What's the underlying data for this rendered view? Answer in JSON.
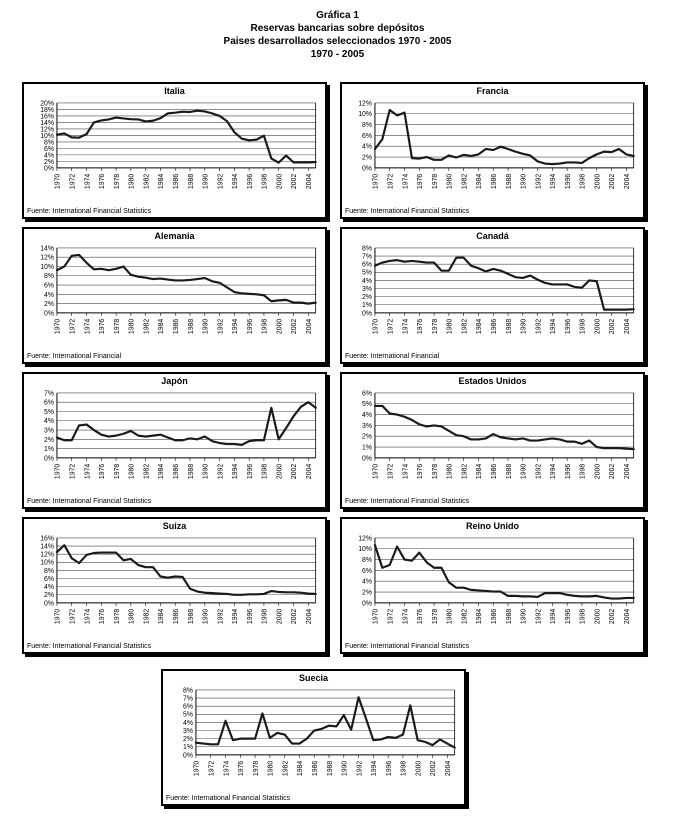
{
  "page_title": {
    "line1": "Gráfica 1",
    "line2": "Reservas bancarias sobre depósitos",
    "line3": "Paises desarrollados seleccionados 1970 - 2005",
    "line4": "1970 - 2005"
  },
  "colors": {
    "line": "#1a1a1a",
    "grid": "#4a4a4a",
    "axis": "#000000",
    "border": "#000000",
    "background": "#ffffff"
  },
  "x_labels": [
    "1970",
    "1972",
    "1974",
    "1976",
    "1978",
    "1980",
    "1982",
    "1984",
    "1986",
    "1988",
    "1990",
    "1992",
    "1994",
    "1996",
    "1998",
    "2000",
    "2002",
    "2004"
  ],
  "chart_data": [
    {
      "type": "line",
      "title": "Italia",
      "source": "Fuente: International Financial Statistics",
      "x_start": 1970,
      "x_end": 2005,
      "ylim": [
        0,
        20
      ],
      "ystep": 2,
      "unit": "%",
      "values": [
        10.2,
        10.6,
        9.4,
        9.3,
        10.4,
        14.0,
        14.6,
        14.9,
        15.5,
        15.2,
        15.0,
        14.9,
        14.3,
        14.5,
        15.3,
        16.8,
        17.0,
        17.3,
        17.2,
        17.6,
        17.4,
        16.8,
        16.0,
        14.4,
        11.0,
        9.0,
        8.5,
        8.7,
        9.9,
        2.9,
        1.6,
        3.8,
        1.7,
        1.7,
        1.7,
        1.8
      ]
    },
    {
      "type": "line",
      "title": "Francia",
      "source": "Fuente: International Financial Statistics",
      "x_start": 1970,
      "x_end": 2005,
      "ylim": [
        0,
        12
      ],
      "ystep": 2,
      "unit": "%",
      "values": [
        3.5,
        5.3,
        10.7,
        9.7,
        10.2,
        1.8,
        1.7,
        2.0,
        1.5,
        1.5,
        2.3,
        1.9,
        2.4,
        2.2,
        2.5,
        3.5,
        3.3,
        3.9,
        3.5,
        3.0,
        2.6,
        2.3,
        1.2,
        0.8,
        0.7,
        0.8,
        1.0,
        1.0,
        0.9,
        1.8,
        2.5,
        3.0,
        2.9,
        3.5,
        2.5,
        2.2
      ]
    },
    {
      "type": "line",
      "title": "Alemania",
      "source": "Fuente: International Financial",
      "x_start": 1970,
      "x_end": 2005,
      "ylim": [
        0,
        14
      ],
      "ystep": 2,
      "unit": "%",
      "values": [
        9.2,
        10.0,
        12.3,
        12.5,
        10.8,
        9.4,
        9.5,
        9.2,
        9.5,
        10.0,
        8.2,
        7.8,
        7.6,
        7.3,
        7.4,
        7.2,
        7.0,
        7.0,
        7.1,
        7.3,
        7.5,
        6.8,
        6.5,
        5.5,
        4.5,
        4.2,
        4.1,
        4.0,
        3.8,
        2.5,
        2.7,
        2.8,
        2.2,
        2.2,
        2.0,
        2.2
      ]
    },
    {
      "type": "line",
      "title": "Canadá",
      "source": "Fuente: International Financial",
      "x_start": 1970,
      "x_end": 2005,
      "ylim": [
        0,
        8
      ],
      "ystep": 1,
      "unit": "%",
      "values": [
        5.8,
        6.2,
        6.4,
        6.5,
        6.3,
        6.4,
        6.3,
        6.2,
        6.2,
        5.2,
        5.2,
        6.8,
        6.8,
        5.8,
        5.5,
        5.1,
        5.4,
        5.2,
        4.8,
        4.4,
        4.3,
        4.6,
        4.1,
        3.7,
        3.5,
        3.5,
        3.5,
        3.2,
        3.1,
        4.0,
        3.9,
        0.4,
        0.4,
        0.4,
        0.4,
        0.45
      ]
    },
    {
      "type": "line",
      "title": "Japón",
      "source": "Fuente: International Financial Statistics",
      "x_start": 1970,
      "x_end": 2005,
      "ylim": [
        0,
        7
      ],
      "ystep": 1,
      "unit": "%",
      "values": [
        2.2,
        1.9,
        1.9,
        3.5,
        3.6,
        3.0,
        2.5,
        2.3,
        2.4,
        2.6,
        2.9,
        2.4,
        2.3,
        2.4,
        2.5,
        2.2,
        1.9,
        1.9,
        2.1,
        2.0,
        2.3,
        1.8,
        1.6,
        1.5,
        1.5,
        1.4,
        1.8,
        1.9,
        1.9,
        5.4,
        2.0,
        3.2,
        4.5,
        5.5,
        6.0,
        5.4
      ]
    },
    {
      "type": "line",
      "title": "Estados Unidos",
      "source": "Fuente: International Financial Statistics",
      "x_start": 1970,
      "x_end": 2005,
      "ylim": [
        0,
        6
      ],
      "ystep": 1,
      "unit": "%",
      "values": [
        4.8,
        4.8,
        4.1,
        4.0,
        3.8,
        3.5,
        3.1,
        2.9,
        3.0,
        2.9,
        2.5,
        2.1,
        2.0,
        1.7,
        1.7,
        1.8,
        2.2,
        1.9,
        1.8,
        1.7,
        1.8,
        1.6,
        1.6,
        1.7,
        1.8,
        1.7,
        1.5,
        1.5,
        1.3,
        1.6,
        1.0,
        0.9,
        0.9,
        0.9,
        0.85,
        0.8
      ]
    },
    {
      "type": "line",
      "title": "Suiza",
      "source": "Fuente: International Financial Statistics",
      "x_start": 1970,
      "x_end": 2005,
      "ylim": [
        0,
        16
      ],
      "ystep": 2,
      "unit": "%",
      "values": [
        12.5,
        14.2,
        11.0,
        9.8,
        11.8,
        12.3,
        12.4,
        12.4,
        12.4,
        10.5,
        10.8,
        9.3,
        8.8,
        8.8,
        6.5,
        6.2,
        6.5,
        6.4,
        3.5,
        2.8,
        2.5,
        2.4,
        2.3,
        2.2,
        2.0,
        2.0,
        2.1,
        2.1,
        2.2,
        2.9,
        2.7,
        2.6,
        2.6,
        2.5,
        2.3,
        2.2
      ]
    },
    {
      "type": "line",
      "title": "Reino Unido",
      "source": "Fuente: International Financial Statistics",
      "x_start": 1970,
      "x_end": 2005,
      "ylim": [
        0,
        12
      ],
      "ystep": 2,
      "unit": "%",
      "values": [
        10.7,
        6.5,
        7.0,
        10.4,
        8.0,
        7.8,
        9.3,
        7.5,
        6.5,
        6.5,
        3.8,
        2.8,
        2.8,
        2.4,
        2.3,
        2.2,
        2.1,
        2.1,
        1.3,
        1.3,
        1.2,
        1.2,
        1.1,
        1.8,
        1.8,
        1.8,
        1.5,
        1.3,
        1.2,
        1.2,
        1.3,
        1.0,
        0.8,
        0.8,
        0.9,
        0.9
      ]
    },
    {
      "type": "line",
      "title": "Suecia",
      "source": "Fuente: International Financial Statistics",
      "x_start": 1970,
      "x_end": 2005,
      "ylim": [
        0,
        8
      ],
      "ystep": 1,
      "unit": "%",
      "values": [
        1.5,
        1.4,
        1.3,
        1.3,
        4.2,
        1.8,
        2.0,
        2.0,
        2.0,
        5.1,
        2.1,
        2.7,
        2.5,
        1.4,
        1.4,
        2.0,
        3.0,
        3.2,
        3.6,
        3.5,
        4.9,
        3.1,
        7.1,
        4.5,
        1.8,
        1.9,
        2.2,
        2.1,
        2.5,
        6.1,
        1.8,
        1.6,
        1.2,
        1.9,
        1.4,
        0.9
      ]
    }
  ],
  "layout": {
    "rows": [
      [
        0,
        1
      ],
      [
        2,
        3
      ],
      [
        4,
        5
      ],
      [
        6,
        7
      ],
      [
        8
      ]
    ]
  }
}
